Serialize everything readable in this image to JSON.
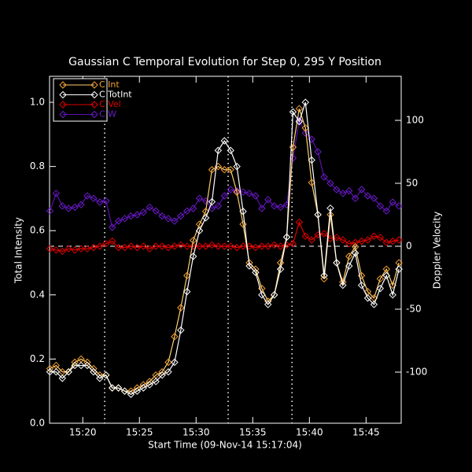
{
  "chart_data": {
    "type": "line",
    "title": "Gaussian C Temporal Evolution for Step 0, 295 Y Position",
    "xlabel": "Start Time (09-Nov-14 15:17:04)",
    "ylabel": "Total Intensity",
    "y2label": "Doppler Velocity",
    "x": [
      17.1,
      17.65,
      18.2,
      18.75,
      19.3,
      19.85,
      20.4,
      20.95,
      21.5,
      22.05,
      22.6,
      23.15,
      23.7,
      24.25,
      24.8,
      25.35,
      25.9,
      26.45,
      27,
      27.55,
      28.1,
      28.65,
      29.2,
      29.75,
      30.3,
      30.85,
      31.4,
      31.95,
      32.5,
      33.05,
      33.6,
      34.15,
      34.7,
      35.25,
      35.8,
      36.35,
      36.9,
      37.45,
      38,
      38.55,
      39.1,
      39.65,
      40.2,
      40.75,
      41.3,
      41.85,
      42.4,
      42.95,
      43.5,
      44.05,
      44.6,
      45.15,
      45.7,
      46.25,
      46.8,
      47.35,
      47.9
    ],
    "series": [
      {
        "name": "C Int",
        "color": "#f5a030",
        "line_color": "#ffd070",
        "values": [
          0.17,
          0.18,
          0.16,
          0.16,
          0.19,
          0.2,
          0.19,
          0.17,
          0.15,
          0.15,
          0.11,
          0.11,
          0.1,
          0.1,
          0.11,
          0.12,
          0.13,
          0.15,
          0.16,
          0.19,
          0.27,
          0.36,
          0.46,
          0.57,
          0.62,
          0.66,
          0.79,
          0.8,
          0.79,
          0.79,
          0.72,
          0.62,
          0.5,
          0.48,
          0.42,
          0.38,
          0.4,
          0.5,
          0.58,
          0.86,
          0.98,
          0.92,
          0.75,
          0.65,
          0.45,
          0.65,
          0.5,
          0.44,
          0.52,
          0.55,
          0.46,
          0.41,
          0.39,
          0.45,
          0.48,
          0.43,
          0.5
        ]
      },
      {
        "name": "C TotInt",
        "color": "#ffffff",
        "line_color": "#ffffff",
        "values": [
          0.16,
          0.16,
          0.14,
          0.16,
          0.18,
          0.18,
          0.18,
          0.16,
          0.14,
          0.15,
          0.11,
          0.11,
          0.1,
          0.09,
          0.1,
          0.11,
          0.12,
          0.13,
          0.15,
          0.16,
          0.19,
          0.29,
          0.41,
          0.52,
          0.6,
          0.64,
          0.69,
          0.85,
          0.88,
          0.85,
          0.8,
          0.66,
          0.49,
          0.47,
          0.4,
          0.37,
          0.4,
          0.48,
          0.58,
          0.97,
          0.94,
          1.0,
          0.82,
          0.65,
          0.46,
          0.67,
          0.5,
          0.43,
          0.49,
          0.53,
          0.43,
          0.39,
          0.37,
          0.42,
          0.46,
          0.4,
          0.48
        ]
      },
      {
        "name": "C Vel",
        "color": "#e00000",
        "line_color": "#e00000",
        "axis": "y2",
        "values": [
          -2,
          -3,
          -4,
          -2,
          -3,
          -2,
          -2,
          -1,
          0,
          2,
          4,
          -1,
          -1,
          0,
          -1,
          0,
          -2,
          0,
          0,
          -1,
          0,
          1,
          0,
          0,
          0,
          0,
          1,
          0,
          0,
          0,
          -1,
          0,
          0,
          -1,
          0,
          0,
          1,
          0,
          1,
          2,
          19,
          8,
          5,
          9,
          10,
          6,
          7,
          5,
          2,
          3,
          4,
          5,
          8,
          7,
          3,
          4,
          5
        ]
      },
      {
        "name": "C W",
        "color": "#6a1cc8",
        "line_color": "#5a10b0",
        "axis": "y2",
        "values": [
          28,
          42,
          32,
          30,
          31,
          33,
          40,
          38,
          35,
          36,
          15,
          20,
          22,
          24,
          25,
          27,
          31,
          28,
          24,
          22,
          20,
          24,
          28,
          30,
          38,
          36,
          30,
          32,
          40,
          45,
          44,
          43,
          42,
          40,
          30,
          37,
          32,
          31,
          33,
          70,
          100,
          90,
          85,
          75,
          55,
          50,
          45,
          42,
          44,
          38,
          45,
          40,
          38,
          32,
          28,
          35,
          32
        ]
      }
    ],
    "xlim": [
      17.07,
      48.1
    ],
    "xticks": [
      {
        "value": 20,
        "label": "15:20"
      },
      {
        "value": 25,
        "label": "15:25"
      },
      {
        "value": 30,
        "label": "15:30"
      },
      {
        "value": 35,
        "label": "15:35"
      },
      {
        "value": 40,
        "label": "15:40"
      },
      {
        "value": 45,
        "label": "15:45"
      }
    ],
    "ylim": [
      0,
      1.081
    ],
    "yticks": [
      {
        "value": 0,
        "label": "0.0"
      },
      0.2,
      0.4,
      0.6,
      0.8,
      {
        "value": 1,
        "label": "1.0"
      }
    ],
    "y2lim": [
      -140.6,
      135
    ],
    "y2ticks": [
      -100,
      -50,
      0,
      50,
      100
    ],
    "vlines": [
      21.93,
      32.83,
      38.46
    ],
    "hline_y2": 0,
    "legend": "upper left"
  }
}
